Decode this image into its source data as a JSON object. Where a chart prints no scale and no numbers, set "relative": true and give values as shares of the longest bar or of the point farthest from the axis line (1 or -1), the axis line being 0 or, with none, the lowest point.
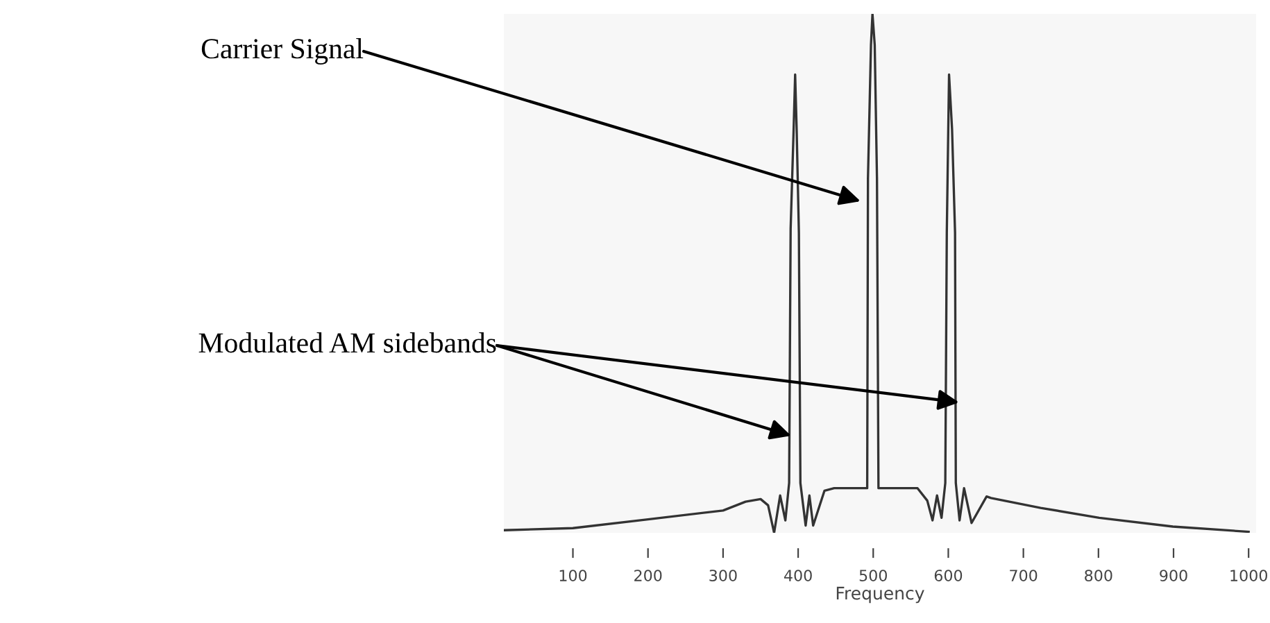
{
  "chart_data": {
    "type": "line",
    "relative": true,
    "xlabel": "Frequency",
    "xlim": [
      8,
      1010
    ],
    "xticks": [
      100,
      200,
      300,
      400,
      500,
      600,
      700,
      800,
      900,
      1000
    ],
    "x": [
      8,
      100,
      200,
      300,
      330,
      350,
      360,
      368,
      376,
      383,
      388,
      390,
      394,
      396,
      398,
      401,
      403,
      410,
      415,
      420,
      435,
      448,
      492,
      493,
      497,
      499,
      502,
      505,
      507,
      559,
      572,
      579,
      585,
      591,
      596,
      598,
      601,
      605,
      609,
      610,
      615,
      621,
      631,
      651,
      657,
      723,
      801,
      899,
      1000
    ],
    "series": [
      {
        "color": "#333333",
        "values": [
          0.005,
          0.009,
          0.026,
          0.043,
          0.06,
          0.065,
          0.053,
          0,
          0.072,
          0.024,
          0.096,
          0.586,
          0.778,
          0.883,
          0.778,
          0.578,
          0.096,
          0.014,
          0.072,
          0.014,
          0.081,
          0.086,
          0.086,
          0.683,
          0.94,
          1.0,
          0.94,
          0.683,
          0.086,
          0.086,
          0.062,
          0.024,
          0.072,
          0.029,
          0.096,
          0.578,
          0.883,
          0.778,
          0.578,
          0.096,
          0.024,
          0.086,
          0.019,
          0.07,
          0.067,
          0.048,
          0.029,
          0.012,
          0.002
        ]
      }
    ],
    "annotations": [
      "Carrier Signal",
      "Modulated AM sidebands"
    ],
    "grid": false,
    "legend": false,
    "marker": "none",
    "line_style": "solid"
  }
}
